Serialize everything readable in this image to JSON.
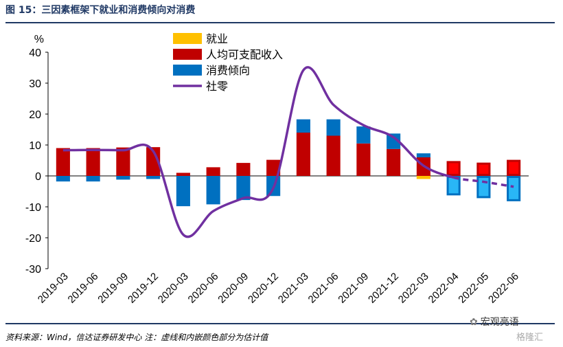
{
  "header": {
    "title": "图 15：三因素框架下就业和消费倾向对消费"
  },
  "footer": {
    "source": "资料来源：Wind，信达证券研发中心   注：虚线和内嵌颜色部分为估计值"
  },
  "brand": {
    "name": "宏观亮语",
    "sub": "格隆汇",
    "wechat_icon": "wechat-icon"
  },
  "colors": {
    "employment": "#ffc000",
    "income": "#c00000",
    "propensity": "#0070c0",
    "retail": "#7030a0",
    "income_est": "#ff0000",
    "propensity_est": "#29b6f6",
    "title": "#1f3864"
  },
  "chart_data": {
    "type": "bar",
    "stacked": true,
    "unit": "%",
    "ylim": [
      -30,
      40
    ],
    "yticks": [
      40,
      30,
      20,
      10,
      0,
      -10,
      -20,
      -30
    ],
    "grid": false,
    "legend_position": "top-left",
    "categories": [
      "2019-03",
      "2019-06",
      "2019-09",
      "2019-12",
      "2020-03",
      "2020-06",
      "2020-09",
      "2020-12",
      "2021-03",
      "2021-06",
      "2021-09",
      "2021-12",
      "2022-03",
      "2022-04",
      "2022-05",
      "2022-06"
    ],
    "estimated_from_index": 13,
    "series": [
      {
        "name": "就业",
        "type": "bar",
        "values": [
          0,
          0,
          0,
          0,
          0,
          0,
          0,
          0,
          0,
          0,
          0,
          0,
          -1.0,
          0,
          0,
          0
        ]
      },
      {
        "name": "人均可支配收入",
        "type": "bar",
        "values": [
          9.0,
          9.0,
          9.2,
          9.3,
          1.0,
          2.8,
          4.2,
          5.2,
          14.0,
          13.0,
          10.5,
          8.7,
          6.0,
          4.8,
          4.3,
          5.2
        ]
      },
      {
        "name": "消费倾向",
        "type": "bar",
        "values": [
          -1.8,
          -1.8,
          -1.2,
          -1.0,
          -9.8,
          -9.2,
          -7.8,
          -6.5,
          4.3,
          5.3,
          5.5,
          5.0,
          1.3,
          -6.3,
          -7.2,
          -8.2
        ]
      },
      {
        "name": "社零",
        "type": "line",
        "x": [
          "2019-03",
          "2019-06",
          "2019-09",
          "2019-12",
          "2020-03",
          "2020-06",
          "2020-09",
          "2020-12",
          "2021-03",
          "2021-06",
          "2021-09",
          "2021-12",
          "2022-03",
          "2022-04",
          "2022-05",
          "2022-06"
        ],
        "values": [
          8.3,
          8.4,
          8.3,
          8.0,
          -19.0,
          -11.4,
          -7.2,
          -3.9,
          34.2,
          23.0,
          16.4,
          12.5,
          3.3,
          -0.5,
          -1.9,
          -3.5
        ],
        "estimated_from_index": 14
      }
    ]
  }
}
